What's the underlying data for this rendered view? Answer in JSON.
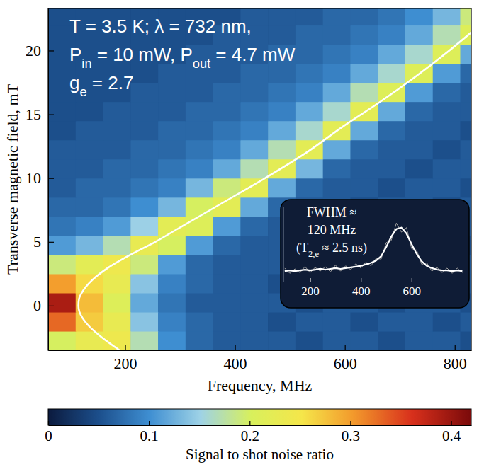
{
  "chart_data": [
    {
      "type": "heatmap",
      "xlabel": "Frequency, MHz",
      "ylabel": "Transverse magnetic field, mT",
      "x": [
        85,
        135,
        185,
        235,
        285,
        335,
        385,
        435,
        485,
        535,
        585,
        635,
        685,
        735,
        785,
        835
      ],
      "y": [
        -2.75,
        -1.25,
        0.25,
        1.75,
        3.25,
        4.75,
        6.25,
        7.75,
        9.25,
        10.75,
        12.25,
        13.75,
        15.25,
        16.75,
        18.25,
        19.75,
        21.25,
        22.75
      ],
      "values": [
        [
          0.2,
          0.23,
          0.24,
          0.17,
          0.1,
          0.07,
          0.06,
          0.06,
          0.06,
          0.05,
          0.06,
          0.06,
          0.05,
          0.06,
          0.06,
          0.05
        ],
        [
          0.33,
          0.27,
          0.23,
          0.14,
          0.09,
          0.07,
          0.06,
          0.06,
          0.05,
          0.06,
          0.06,
          0.05,
          0.06,
          0.06,
          0.05,
          0.06
        ],
        [
          0.39,
          0.28,
          0.21,
          0.12,
          0.08,
          0.06,
          0.06,
          0.06,
          0.06,
          0.05,
          0.06,
          0.06,
          0.05,
          0.06,
          0.06,
          0.05
        ],
        [
          0.3,
          0.26,
          0.23,
          0.14,
          0.09,
          0.07,
          0.06,
          0.06,
          0.05,
          0.06,
          0.06,
          0.06,
          0.05,
          0.06,
          0.05,
          0.06
        ],
        [
          0.19,
          0.22,
          0.24,
          0.19,
          0.11,
          0.07,
          0.06,
          0.06,
          0.06,
          0.06,
          0.05,
          0.06,
          0.06,
          0.05,
          0.06,
          0.06
        ],
        [
          0.11,
          0.13,
          0.17,
          0.23,
          0.2,
          0.11,
          0.07,
          0.06,
          0.06,
          0.05,
          0.06,
          0.06,
          0.05,
          0.06,
          0.06,
          0.05
        ],
        [
          0.08,
          0.09,
          0.11,
          0.15,
          0.22,
          0.21,
          0.11,
          0.07,
          0.06,
          0.06,
          0.05,
          0.06,
          0.06,
          0.05,
          0.06,
          0.06
        ],
        [
          0.07,
          0.07,
          0.08,
          0.1,
          0.13,
          0.2,
          0.22,
          0.12,
          0.07,
          0.06,
          0.06,
          0.05,
          0.06,
          0.06,
          0.05,
          0.06
        ],
        [
          0.06,
          0.07,
          0.07,
          0.08,
          0.09,
          0.13,
          0.19,
          0.22,
          0.12,
          0.07,
          0.06,
          0.06,
          0.05,
          0.06,
          0.06,
          0.05
        ],
        [
          0.06,
          0.06,
          0.07,
          0.07,
          0.08,
          0.09,
          0.12,
          0.17,
          0.22,
          0.13,
          0.07,
          0.06,
          0.06,
          0.05,
          0.06,
          0.06
        ],
        [
          0.06,
          0.06,
          0.06,
          0.07,
          0.07,
          0.08,
          0.09,
          0.12,
          0.17,
          0.22,
          0.12,
          0.07,
          0.06,
          0.06,
          0.05,
          0.06
        ],
        [
          0.05,
          0.06,
          0.06,
          0.06,
          0.07,
          0.07,
          0.08,
          0.09,
          0.12,
          0.16,
          0.22,
          0.12,
          0.07,
          0.06,
          0.06,
          0.05
        ],
        [
          0.05,
          0.05,
          0.06,
          0.06,
          0.06,
          0.07,
          0.07,
          0.08,
          0.09,
          0.12,
          0.16,
          0.22,
          0.12,
          0.07,
          0.06,
          0.06
        ],
        [
          0.05,
          0.05,
          0.05,
          0.06,
          0.06,
          0.06,
          0.07,
          0.07,
          0.08,
          0.09,
          0.12,
          0.17,
          0.21,
          0.11,
          0.07,
          0.06
        ],
        [
          0.05,
          0.05,
          0.05,
          0.05,
          0.06,
          0.06,
          0.06,
          0.07,
          0.07,
          0.08,
          0.09,
          0.12,
          0.16,
          0.21,
          0.11,
          0.07
        ],
        [
          0.05,
          0.05,
          0.05,
          0.05,
          0.05,
          0.06,
          0.06,
          0.06,
          0.07,
          0.07,
          0.08,
          0.09,
          0.12,
          0.16,
          0.21,
          0.12
        ],
        [
          0.05,
          0.05,
          0.05,
          0.05,
          0.05,
          0.05,
          0.06,
          0.06,
          0.06,
          0.07,
          0.07,
          0.08,
          0.09,
          0.12,
          0.17,
          0.21
        ],
        [
          0.05,
          0.05,
          0.05,
          0.05,
          0.05,
          0.05,
          0.05,
          0.06,
          0.06,
          0.06,
          0.07,
          0.07,
          0.08,
          0.1,
          0.13,
          0.19
        ]
      ],
      "xlim": [
        60,
        830
      ],
      "ylim": [
        -3.5,
        23.3
      ],
      "xticks": [
        200,
        400,
        600,
        800
      ],
      "yticks": [
        0,
        5,
        10,
        15,
        20
      ],
      "colorbar": {
        "label": "Signal to shot noise ratio",
        "range": [
          0,
          0.42
        ],
        "ticks": [
          0,
          0.1,
          0.2,
          0.3,
          0.4
        ]
      },
      "curve": {
        "color": "#ffffff",
        "x": [
          190,
          158,
          132,
          117,
          115,
          116,
          121,
          140,
          170,
          210,
          255,
          295,
          335,
          375,
          455,
          530,
          595,
          665,
          730,
          790,
          832
        ],
        "y": [
          -3.5,
          -2.5,
          -1.5,
          -0.5,
          0,
          0.5,
          1,
          2,
          3,
          4,
          5,
          6,
          7,
          8,
          10,
          12,
          14,
          16,
          18,
          20,
          21.5
        ]
      },
      "annotations": [
        [
          "T = 3.5 K; λ = 732 nm,"
        ],
        [
          "P",
          "in",
          " = 10 mW, P",
          "out",
          " = 4.7 mW"
        ],
        [
          "g",
          "e",
          " = 2.7"
        ]
      ]
    },
    {
      "type": "line",
      "x": [
        100,
        120,
        140,
        160,
        180,
        200,
        220,
        240,
        260,
        280,
        300,
        320,
        340,
        360,
        380,
        400,
        420,
        440,
        460,
        480,
        500,
        520,
        540,
        560,
        580,
        600,
        620,
        640,
        660,
        680,
        700,
        720,
        740,
        760,
        780,
        800
      ],
      "series": [
        {
          "color": "#a0a0a0",
          "values": [
            0.18,
            0.11,
            0.17,
            0.12,
            0.2,
            0.12,
            0.19,
            0.14,
            0.2,
            0.13,
            0.22,
            0.14,
            0.21,
            0.16,
            0.24,
            0.18,
            0.26,
            0.21,
            0.31,
            0.3,
            0.52,
            0.55,
            0.78,
            0.66,
            0.72,
            0.44,
            0.42,
            0.23,
            0.25,
            0.14,
            0.19,
            0.12,
            0.18,
            0.11,
            0.18,
            0.12
          ]
        },
        {
          "color": "#ffffff",
          "values": [
            0.14,
            0.15,
            0.14,
            0.15,
            0.16,
            0.15,
            0.16,
            0.17,
            0.16,
            0.17,
            0.18,
            0.17,
            0.18,
            0.19,
            0.2,
            0.21,
            0.23,
            0.25,
            0.28,
            0.34,
            0.46,
            0.6,
            0.7,
            0.72,
            0.64,
            0.5,
            0.37,
            0.27,
            0.21,
            0.18,
            0.16,
            0.15,
            0.15,
            0.14,
            0.15,
            0.14
          ]
        }
      ],
      "xlim": [
        95,
        810
      ],
      "xticks": [
        200,
        400,
        600
      ],
      "ylim": [
        0,
        1
      ],
      "tick_labels": "x",
      "annotations": [
        [
          "FWHM ≈"
        ],
        [
          "120 MHz"
        ],
        [
          "(T",
          "2,e",
          " ≈ 2.5 ns)"
        ]
      ]
    }
  ]
}
